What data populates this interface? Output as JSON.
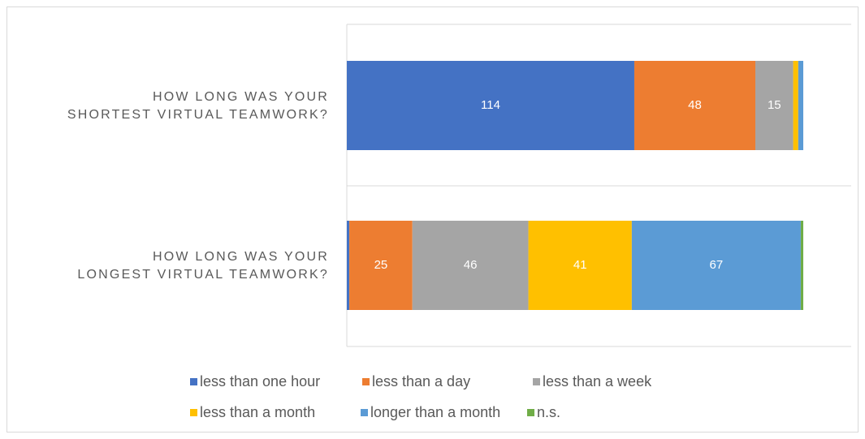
{
  "chart_data": {
    "type": "stacked-bar-horizontal",
    "categories": [
      [
        "HOW LONG WAS YOUR",
        "SHORTEST VIRTUAL TEAMWORK?"
      ],
      [
        "HOW LONG WAS YOUR",
        "LONGEST VIRTUAL TEAMWORK?"
      ]
    ],
    "series": [
      {
        "name": "less than one hour",
        "color": "#4472c4",
        "values": [
          114,
          1
        ]
      },
      {
        "name": "less than a day",
        "color": "#ed7d31",
        "values": [
          48,
          25
        ]
      },
      {
        "name": "less than a week",
        "color": "#a5a5a5",
        "values": [
          15,
          46
        ]
      },
      {
        "name": "less than a month",
        "color": "#ffc000",
        "values": [
          2,
          41
        ]
      },
      {
        "name": "longer than a month",
        "color": "#5b9bd5",
        "values": [
          2,
          67
        ]
      },
      {
        "name": "n.s.",
        "color": "#70ad47",
        "values": [
          0,
          1
        ]
      }
    ],
    "xlim": [
      0,
      200
    ],
    "legend": "bottom"
  }
}
